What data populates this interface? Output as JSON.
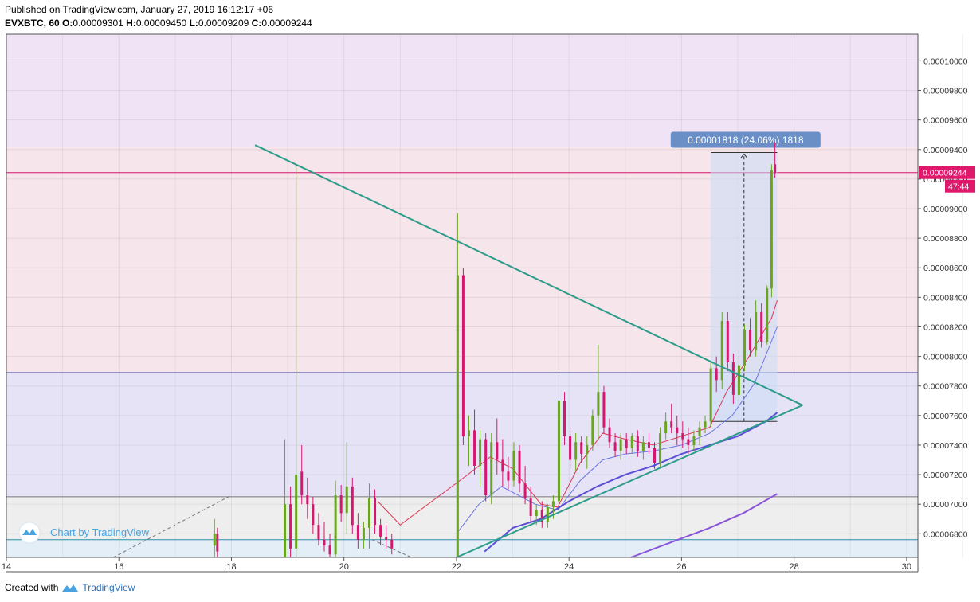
{
  "header": {
    "published": "Published on TradingView.com, January 27, 2019 16:12:17 +06",
    "symbol": "EVXBTC, 60",
    "o_label": "O:",
    "o": "0.00009301",
    "h_label": "H:",
    "h": "0.00009450",
    "l_label": "L:",
    "l": "0.00009209",
    "c_label": "C:",
    "c": "0.00009244"
  },
  "footer": {
    "created": "Created with",
    "brand": "TradingView"
  },
  "watermark": "Chart by TradingView",
  "colors": {
    "up": "#6aa51f",
    "down": "#d6176f",
    "trend": "#2e9c8a",
    "ma_fast": "#e0344f",
    "ma_mid": "#6a74e0",
    "ma_slow": "#5b4fd6",
    "ma_200": "#8a55d8",
    "zone_top": "#efe3f5",
    "zone_red": "#f6e5ea",
    "zone_blue": "#e6e3f7",
    "zone_grey": "#eeeeee",
    "zone_cyan": "#e3eef6",
    "price_tag": "#e0186c",
    "measure": "#6a8fc6"
  },
  "chart_data": {
    "type": "candlestick",
    "ylim": [
      6.64e-05,
      0.0001018
    ],
    "xlim": [
      14,
      30.2
    ],
    "x_ticks": [
      "14",
      "16",
      "18",
      "20",
      "22",
      "24",
      "26",
      "28",
      "30"
    ],
    "y_ticks": [
      "0.00010000",
      "0.00009800",
      "0.00009600",
      "0.00009400",
      "0.00009200",
      "0.00009000",
      "0.00008800",
      "0.00008600",
      "0.00008400",
      "0.00008200",
      "0.00008000",
      "0.00007800",
      "0.00007600",
      "0.00007400",
      "0.00007200",
      "0.00007000",
      "0.00006800"
    ],
    "last_price": "0.00009244",
    "countdown": "47:44",
    "measure_label": "0.00001818 (24.06%) 1818",
    "zones": [
      {
        "from": 9.42e-05,
        "to": 0.0001018,
        "color": "zone_top"
      },
      {
        "from": 7.89e-05,
        "to": 9.42e-05,
        "color": "zone_red"
      },
      {
        "from": 7.05e-05,
        "to": 7.89e-05,
        "color": "zone_blue"
      },
      {
        "from": 6.76e-05,
        "to": 7.05e-05,
        "color": "zone_grey"
      },
      {
        "from": 6.64e-05,
        "to": 6.76e-05,
        "color": "zone_cyan"
      }
    ],
    "hlines": [
      {
        "y": 9.244e-05,
        "color": "#d6176f"
      },
      {
        "y": 7.89e-05,
        "color": "#3c3c9a"
      },
      {
        "y": 7.05e-05,
        "color": "#777777"
      },
      {
        "y": 6.76e-05,
        "color": "#2b8fa8"
      }
    ],
    "trendlines": [
      {
        "x1": 18.42,
        "y1": 9.43e-05,
        "x2": 28.15,
        "y2": 7.67e-05
      },
      {
        "x1": 22.0,
        "y1": 6.64e-05,
        "x2": 28.15,
        "y2": 7.67e-05
      }
    ],
    "candles": [
      [
        17.7,
        6.72e-05,
        6.9e-05,
        6.64e-05,
        6.8e-05
      ],
      [
        17.75,
        6.8e-05,
        6.84e-05,
        6.64e-05,
        6.68e-05
      ],
      [
        18.95,
        6.64e-05,
        7.44e-05,
        6.64e-05,
        7e-05
      ],
      [
        19.05,
        7e-05,
        7.12e-05,
        6.64e-05,
        6.7e-05
      ],
      [
        19.15,
        6.7e-05,
        9.3e-05,
        6.64e-05,
        7.2e-05
      ],
      [
        19.25,
        7.22e-05,
        7.4e-05,
        7e-05,
        7.06e-05
      ],
      [
        19.35,
        7.06e-05,
        7.18e-05,
        6.9e-05,
        7e-05
      ],
      [
        19.45,
        7e-05,
        7.05e-05,
        6.8e-05,
        6.86e-05
      ],
      [
        19.55,
        6.86e-05,
        6.94e-05,
        6.72e-05,
        6.76e-05
      ],
      [
        19.65,
        6.76e-05,
        6.88e-05,
        6.68e-05,
        6.72e-05
      ],
      [
        19.75,
        6.72e-05,
        6.8e-05,
        6.64e-05,
        6.66e-05
      ],
      [
        19.85,
        6.66e-05,
        7.16e-05,
        6.64e-05,
        7.06e-05
      ],
      [
        19.95,
        7.06e-05,
        7.13e-05,
        6.88e-05,
        6.94e-05
      ],
      [
        20.05,
        6.94e-05,
        7.42e-05,
        6.8e-05,
        7.12e-05
      ],
      [
        20.15,
        7.12e-05,
        7.18e-05,
        6.8e-05,
        6.86e-05
      ],
      [
        20.25,
        6.86e-05,
        6.94e-05,
        6.7e-05,
        6.76e-05
      ],
      [
        20.35,
        6.76e-05,
        6.88e-05,
        6.7e-05,
        6.84e-05
      ],
      [
        20.45,
        6.84e-05,
        7.14e-05,
        6.7e-05,
        7.04e-05
      ],
      [
        20.55,
        7.04e-05,
        7.1e-05,
        6.8e-05,
        6.86e-05
      ],
      [
        20.65,
        6.86e-05,
        6.9e-05,
        6.72e-05,
        6.78e-05
      ],
      [
        20.75,
        6.78e-05,
        6.86e-05,
        6.7e-05,
        6.76e-05
      ],
      [
        20.85,
        6.76e-05,
        6.8e-05,
        6.66e-05,
        6.7e-05
      ],
      [
        22.02,
        6.64e-05,
        8.97e-05,
        6.64e-05,
        8.55e-05
      ],
      [
        22.12,
        8.55e-05,
        8.6e-05,
        7.4e-05,
        7.46e-05
      ],
      [
        22.22,
        7.46e-05,
        7.6e-05,
        7.26e-05,
        7.5e-05
      ],
      [
        22.32,
        7.5e-05,
        7.64e-05,
        7.2e-05,
        7.26e-05
      ],
      [
        22.42,
        7.26e-05,
        7.5e-05,
        7.12e-05,
        7.44e-05
      ],
      [
        22.52,
        7.44e-05,
        7.48e-05,
        7.02e-05,
        7.06e-05
      ],
      [
        22.62,
        7.06e-05,
        7.48e-05,
        7e-05,
        7.42e-05
      ],
      [
        22.72,
        7.42e-05,
        7.58e-05,
        7.2e-05,
        7.3e-05
      ],
      [
        22.82,
        7.3e-05,
        7.44e-05,
        7.12e-05,
        7.22e-05
      ],
      [
        22.92,
        7.22e-05,
        7.32e-05,
        7.1e-05,
        7.16e-05
      ],
      [
        23.02,
        7.16e-05,
        7.42e-05,
        7.12e-05,
        7.36e-05
      ],
      [
        23.12,
        7.36e-05,
        7.4e-05,
        7.08e-05,
        7.14e-05
      ],
      [
        23.22,
        7.14e-05,
        7.26e-05,
        7e-05,
        7.04e-05
      ],
      [
        23.32,
        7.04e-05,
        7.12e-05,
        6.88e-05,
        6.92e-05
      ],
      [
        23.42,
        6.92e-05,
        7e-05,
        6.86e-05,
        6.96e-05
      ],
      [
        23.52,
        6.96e-05,
        7.02e-05,
        6.84e-05,
        6.88e-05
      ],
      [
        23.62,
        6.88e-05,
        7e-05,
        6.84e-05,
        6.98e-05
      ],
      [
        23.72,
        6.98e-05,
        7.06e-05,
        6.9e-05,
        7.02e-05
      ],
      [
        23.82,
        7.02e-05,
        8.46e-05,
        7e-05,
        7.7e-05
      ],
      [
        23.92,
        7.7e-05,
        7.76e-05,
        7.4e-05,
        7.46e-05
      ],
      [
        24.02,
        7.46e-05,
        7.52e-05,
        7.24e-05,
        7.3e-05
      ],
      [
        24.12,
        7.3e-05,
        7.48e-05,
        7.22e-05,
        7.42e-05
      ],
      [
        24.22,
        7.42e-05,
        7.46e-05,
        7.28e-05,
        7.34e-05
      ],
      [
        24.32,
        7.34e-05,
        7.46e-05,
        7.24e-05,
        7.4e-05
      ],
      [
        24.42,
        7.4e-05,
        7.64e-05,
        7.36e-05,
        7.6e-05
      ],
      [
        24.52,
        7.6e-05,
        8.08e-05,
        7.44e-05,
        7.76e-05
      ],
      [
        24.62,
        7.76e-05,
        7.8e-05,
        7.48e-05,
        7.52e-05
      ],
      [
        24.72,
        7.52e-05,
        7.58e-05,
        7.38e-05,
        7.42e-05
      ],
      [
        24.82,
        7.42e-05,
        7.48e-05,
        7.32e-05,
        7.36e-05
      ],
      [
        24.92,
        7.36e-05,
        7.48e-05,
        7.3e-05,
        7.44e-05
      ],
      [
        25.02,
        7.44e-05,
        7.48e-05,
        7.34e-05,
        7.38e-05
      ],
      [
        25.12,
        7.38e-05,
        7.48e-05,
        7.34e-05,
        7.46e-05
      ],
      [
        25.22,
        7.46e-05,
        7.5e-05,
        7.32e-05,
        7.36e-05
      ],
      [
        25.32,
        7.36e-05,
        7.46e-05,
        7.3e-05,
        7.42e-05
      ],
      [
        25.42,
        7.42e-05,
        7.48e-05,
        7.34e-05,
        7.38e-05
      ],
      [
        25.52,
        7.38e-05,
        7.42e-05,
        7.24e-05,
        7.28e-05
      ],
      [
        25.62,
        7.28e-05,
        7.52e-05,
        7.24e-05,
        7.48e-05
      ],
      [
        25.72,
        7.48e-05,
        7.62e-05,
        7.44e-05,
        7.56e-05
      ],
      [
        25.82,
        7.56e-05,
        7.68e-05,
        7.48e-05,
        7.52e-05
      ],
      [
        25.92,
        7.52e-05,
        7.6e-05,
        7.4e-05,
        7.48e-05
      ],
      [
        26.02,
        7.48e-05,
        7.56e-05,
        7.38e-05,
        7.44e-05
      ],
      [
        26.12,
        7.44e-05,
        7.52e-05,
        7.34e-05,
        7.4e-05
      ],
      [
        26.22,
        7.4e-05,
        7.5e-05,
        7.36e-05,
        7.46e-05
      ],
      [
        26.32,
        7.46e-05,
        7.56e-05,
        7.4e-05,
        7.52e-05
      ],
      [
        26.42,
        7.52e-05,
        7.6e-05,
        7.48e-05,
        7.56e-05
      ],
      [
        26.52,
        7.56e-05,
        7.96e-05,
        7.52e-05,
        7.92e-05
      ],
      [
        26.62,
        7.92e-05,
        8e-05,
        7.76e-05,
        7.84e-05
      ],
      [
        26.72,
        7.84e-05,
        8.3e-05,
        7.78e-05,
        8.24e-05
      ],
      [
        26.82,
        8.24e-05,
        8.3e-05,
        7.9e-05,
        7.96e-05
      ],
      [
        26.92,
        7.96e-05,
        8.02e-05,
        7.68e-05,
        7.74e-05
      ],
      [
        27.02,
        7.74e-05,
        8e-05,
        7.7e-05,
        7.94e-05
      ],
      [
        27.12,
        7.94e-05,
        8.22e-05,
        7.9e-05,
        8.18e-05
      ],
      [
        27.22,
        8.18e-05,
        8.26e-05,
        8e-05,
        8.04e-05
      ],
      [
        27.32,
        8.04e-05,
        8.38e-05,
        8e-05,
        8.3e-05
      ],
      [
        27.42,
        8.3e-05,
        8.36e-05,
        8.06e-05,
        8.1e-05
      ],
      [
        27.52,
        8.1e-05,
        8.48e-05,
        8.08e-05,
        8.46e-05
      ],
      [
        27.6,
        8.46e-05,
        9.3e-05,
        8.4e-05,
        9.26e-05
      ],
      [
        27.66,
        9.3e-05,
        9.45e-05,
        9.21e-05,
        9.24e-05
      ]
    ],
    "ma_lines": [
      {
        "color": "ma_fast",
        "points": [
          [
            20.6,
            7.02e-05
          ],
          [
            21.0,
            6.86e-05
          ],
          [
            22.2,
            7.2e-05
          ],
          [
            22.6,
            7.32e-05
          ],
          [
            23.0,
            7.24e-05
          ],
          [
            23.5,
            7e-05
          ],
          [
            23.8,
            6.98e-05
          ],
          [
            24.2,
            7.28e-05
          ],
          [
            24.6,
            7.48e-05
          ],
          [
            25.0,
            7.44e-05
          ],
          [
            25.5,
            7.4e-05
          ],
          [
            26.0,
            7.46e-05
          ],
          [
            26.5,
            7.52e-05
          ],
          [
            26.8,
            7.76e-05
          ],
          [
            27.2,
            8e-05
          ],
          [
            27.6,
            8.26e-05
          ],
          [
            27.7,
            8.38e-05
          ]
        ]
      },
      {
        "color": "ma_mid",
        "points": [
          [
            22.0,
            6.8e-05
          ],
          [
            22.4,
            7e-05
          ],
          [
            22.8,
            7.12e-05
          ],
          [
            23.4,
            7e-05
          ],
          [
            23.8,
            6.96e-05
          ],
          [
            24.2,
            7.16e-05
          ],
          [
            24.6,
            7.3e-05
          ],
          [
            25.0,
            7.34e-05
          ],
          [
            25.5,
            7.36e-05
          ],
          [
            26.0,
            7.4e-05
          ],
          [
            26.5,
            7.48e-05
          ],
          [
            26.9,
            7.6e-05
          ],
          [
            27.3,
            7.82e-05
          ],
          [
            27.7,
            8.2e-05
          ]
        ]
      },
      {
        "color": "ma_slow",
        "points": [
          [
            22.5,
            6.68e-05
          ],
          [
            23.0,
            6.84e-05
          ],
          [
            23.5,
            6.9e-05
          ],
          [
            24.0,
            7.02e-05
          ],
          [
            24.5,
            7.12e-05
          ],
          [
            25.0,
            7.2e-05
          ],
          [
            25.5,
            7.26e-05
          ],
          [
            26.0,
            7.34e-05
          ],
          [
            26.5,
            7.4e-05
          ],
          [
            27.0,
            7.46e-05
          ],
          [
            27.5,
            7.56e-05
          ],
          [
            27.7,
            7.62e-05
          ]
        ]
      },
      {
        "color": "ma_200",
        "points": [
          [
            25.1,
            6.64e-05
          ],
          [
            25.8,
            6.74e-05
          ],
          [
            26.5,
            6.84e-05
          ],
          [
            27.1,
            6.94e-05
          ],
          [
            27.7,
            7.07e-05
          ]
        ]
      }
    ]
  }
}
